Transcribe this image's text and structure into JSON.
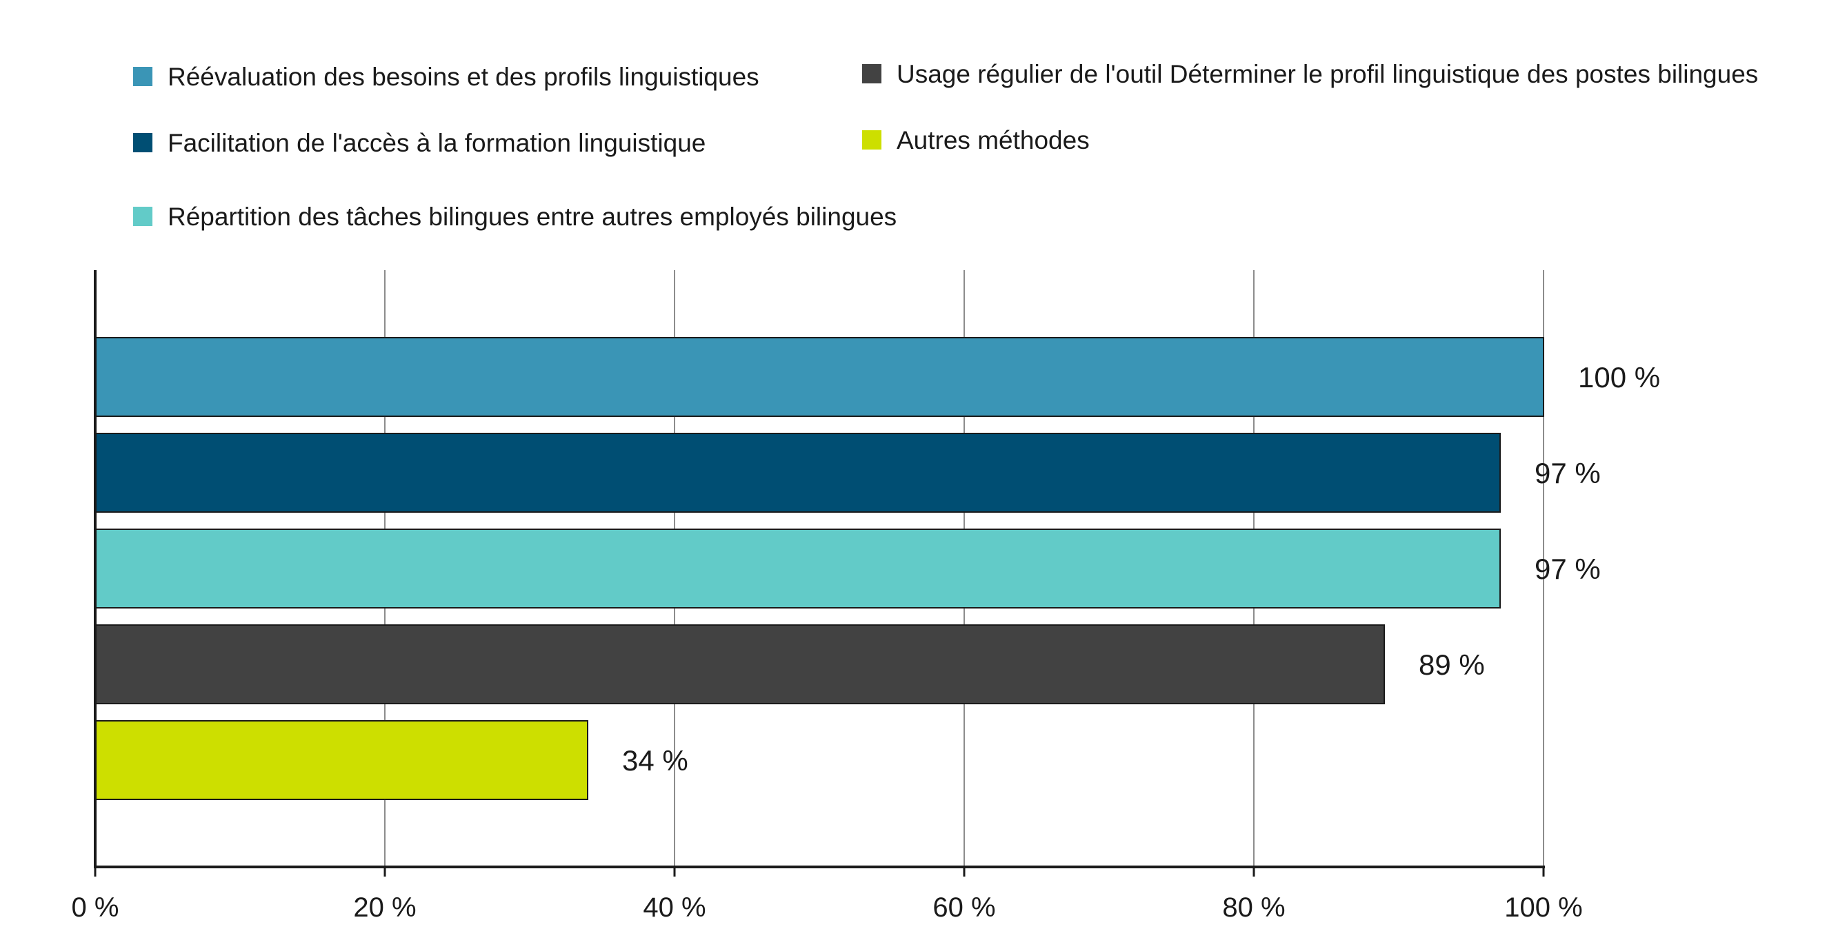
{
  "chart_data": {
    "type": "bar",
    "orientation": "horizontal",
    "title": "",
    "xlabel": "",
    "ylabel": "",
    "xlim": [
      0,
      100
    ],
    "x_ticks": [
      0,
      20,
      40,
      60,
      80,
      100
    ],
    "x_tick_labels": [
      "0 %",
      "20 %",
      "40 %",
      "60 %",
      "80 %",
      "100 %"
    ],
    "grid": "vertical",
    "legend_position": "top",
    "series": [
      {
        "name": "Réévaluation des besoins et des profils linguistiques",
        "value": 100,
        "label": "100 %",
        "color": "#3a95b6"
      },
      {
        "name": "Facilitation de l'accès à la formation linguistique",
        "value": 97,
        "label": "97 %",
        "color": "#004e73"
      },
      {
        "name": "Répartition des tâches bilingues entre autres employés bilingues",
        "value": 97,
        "label": "97 %",
        "color": "#62cbc8"
      },
      {
        "name": "Usage régulier de l'outil Déterminer le profil linguistique des postes bilingues",
        "value": 89,
        "label": "89 %",
        "color": "#424242"
      },
      {
        "name": "Autres méthodes",
        "value": 34,
        "label": "34 %",
        "color": "#cddf00"
      }
    ]
  }
}
